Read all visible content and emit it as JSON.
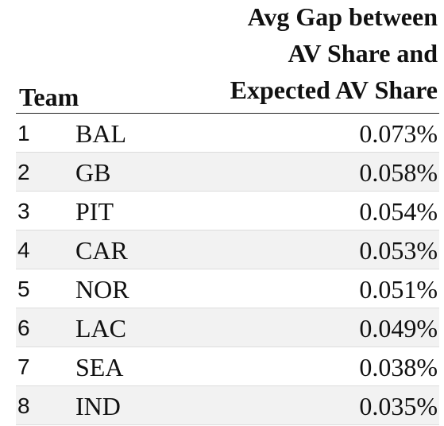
{
  "chart_data": {
    "type": "table",
    "columns": [
      "Team",
      "Avg Gap between AV Share and Expected AV Share"
    ],
    "header": {
      "team": "Team",
      "metric_lines": [
        "Avg Gap between",
        "AV Share and",
        "Expected AV Share"
      ]
    },
    "rows": [
      {
        "rank": "1",
        "team": "BAL",
        "value": "0.073%"
      },
      {
        "rank": "2",
        "team": "GB",
        "value": "0.058%"
      },
      {
        "rank": "3",
        "team": "PIT",
        "value": "0.054%"
      },
      {
        "rank": "4",
        "team": "CAR",
        "value": "0.053%"
      },
      {
        "rank": "5",
        "team": "NOR",
        "value": "0.051%"
      },
      {
        "rank": "6",
        "team": "LAC",
        "value": "0.049%"
      },
      {
        "rank": "7",
        "team": "SEA",
        "value": "0.038%"
      },
      {
        "rank": "8",
        "team": "IND",
        "value": "0.035%"
      }
    ]
  }
}
